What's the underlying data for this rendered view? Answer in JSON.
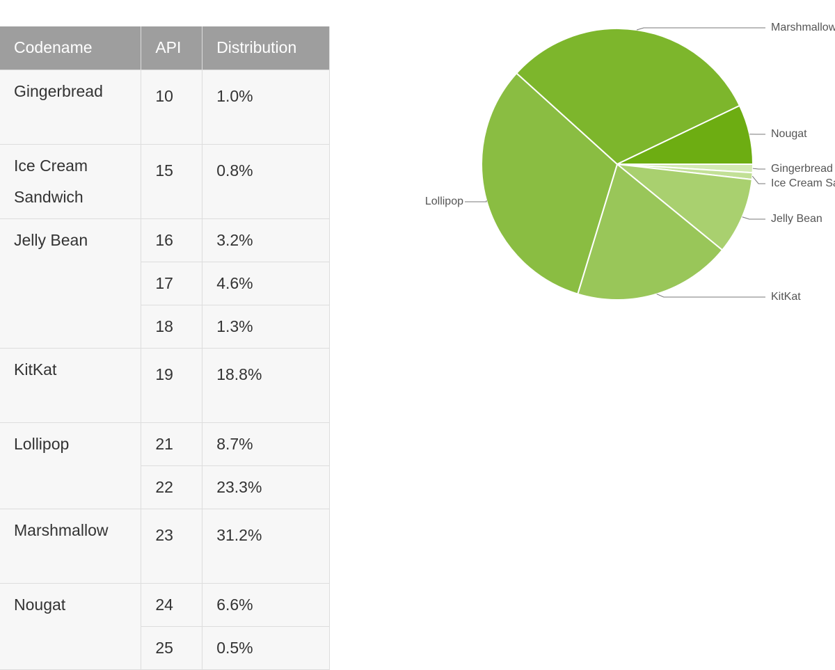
{
  "table": {
    "headers": [
      "Codename",
      "API",
      "Distribution"
    ],
    "rows": [
      {
        "codename": "Gingerbread",
        "versions": [
          {
            "api": "10",
            "distribution": "1.0%"
          }
        ]
      },
      {
        "codename": "Ice Cream Sandwich",
        "versions": [
          {
            "api": "15",
            "distribution": "0.8%"
          }
        ]
      },
      {
        "codename": "Jelly Bean",
        "versions": [
          {
            "api": "16",
            "distribution": "3.2%"
          },
          {
            "api": "17",
            "distribution": "4.6%"
          },
          {
            "api": "18",
            "distribution": "1.3%"
          }
        ]
      },
      {
        "codename": "KitKat",
        "versions": [
          {
            "api": "19",
            "distribution": "18.8%"
          }
        ]
      },
      {
        "codename": "Lollipop",
        "versions": [
          {
            "api": "21",
            "distribution": "8.7%"
          },
          {
            "api": "22",
            "distribution": "23.3%"
          }
        ]
      },
      {
        "codename": "Marshmallow",
        "versions": [
          {
            "api": "23",
            "distribution": "31.2%"
          }
        ]
      },
      {
        "codename": "Nougat",
        "versions": [
          {
            "api": "24",
            "distribution": "6.6%"
          },
          {
            "api": "25",
            "distribution": "0.5%"
          }
        ]
      }
    ]
  },
  "chart_data": {
    "type": "pie",
    "categories": [
      "Gingerbread",
      "Ice Cream Sandwich",
      "Jelly Bean",
      "KitKat",
      "Lollipop",
      "Marshmallow",
      "Nougat"
    ],
    "values": [
      1.0,
      0.8,
      9.1,
      18.8,
      32.0,
      31.2,
      7.1
    ],
    "colors": [
      "#d3eab2",
      "#c2e096",
      "#a9d06f",
      "#99c659",
      "#8abd42",
      "#7db62c",
      "#6dad12"
    ]
  }
}
